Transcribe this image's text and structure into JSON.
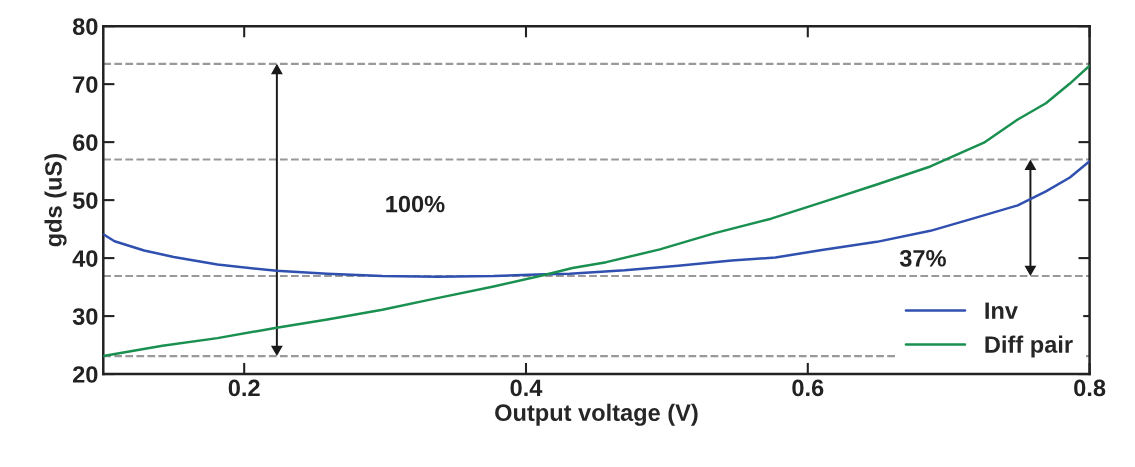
{
  "chart_data": {
    "type": "line",
    "xlabel": "Output voltage (V)",
    "ylabel": "gds (uS)",
    "xlim": [
      0.1,
      0.8
    ],
    "xticks": [
      0.2,
      0.4,
      0.6,
      0.8
    ],
    "ylim": [
      20,
      80
    ],
    "yticks": [
      20,
      30,
      40,
      50,
      60,
      70,
      80
    ],
    "grid": false,
    "legend": "bottom right",
    "line_style": "solid",
    "marker": "none",
    "series": [
      {
        "name": "Inv",
        "color": "#3050b0",
        "x": [
          0.1,
          0.108,
          0.129,
          0.15,
          0.181,
          0.223,
          0.259,
          0.298,
          0.337,
          0.377,
          0.413,
          0.431,
          0.47,
          0.508,
          0.546,
          0.577,
          0.61,
          0.649,
          0.687,
          0.717,
          0.749,
          0.769,
          0.786,
          0.8
        ],
        "values": [
          44.1,
          42.9,
          41.3,
          40.2,
          38.9,
          37.8,
          37.3,
          36.9,
          36.8,
          36.9,
          37.2,
          37.3,
          37.9,
          38.7,
          39.6,
          40.1,
          41.4,
          42.8,
          44.7,
          46.8,
          49.1,
          51.5,
          53.9,
          56.7
        ]
      },
      {
        "name": "Diff pair",
        "color": "#1a9050",
        "x": [
          0.1,
          0.142,
          0.181,
          0.223,
          0.259,
          0.298,
          0.337,
          0.377,
          0.413,
          0.433,
          0.457,
          0.495,
          0.534,
          0.574,
          0.61,
          0.649,
          0.687,
          0.725,
          0.749,
          0.769,
          0.786,
          0.8
        ],
        "values": [
          23.1,
          24.9,
          26.2,
          28.0,
          29.4,
          31.1,
          33.1,
          35.1,
          37.1,
          38.3,
          39.3,
          41.5,
          44.3,
          46.8,
          49.6,
          52.7,
          55.8,
          59.9,
          63.9,
          66.7,
          70.1,
          73.2
        ]
      }
    ],
    "ref_lines": [
      {
        "axis": "y",
        "value": 23.1,
        "color": "#999999",
        "line_style": "dashed"
      },
      {
        "axis": "y",
        "value": 73.5,
        "color": "#999999",
        "line_style": "dashed"
      },
      {
        "axis": "y",
        "value": 36.9,
        "color": "#999999",
        "line_style": "dashed"
      },
      {
        "axis": "y",
        "value": 57,
        "color": "#999999",
        "line_style": "dashed"
      }
    ],
    "annotations": [
      "100%",
      "37%"
    ]
  }
}
